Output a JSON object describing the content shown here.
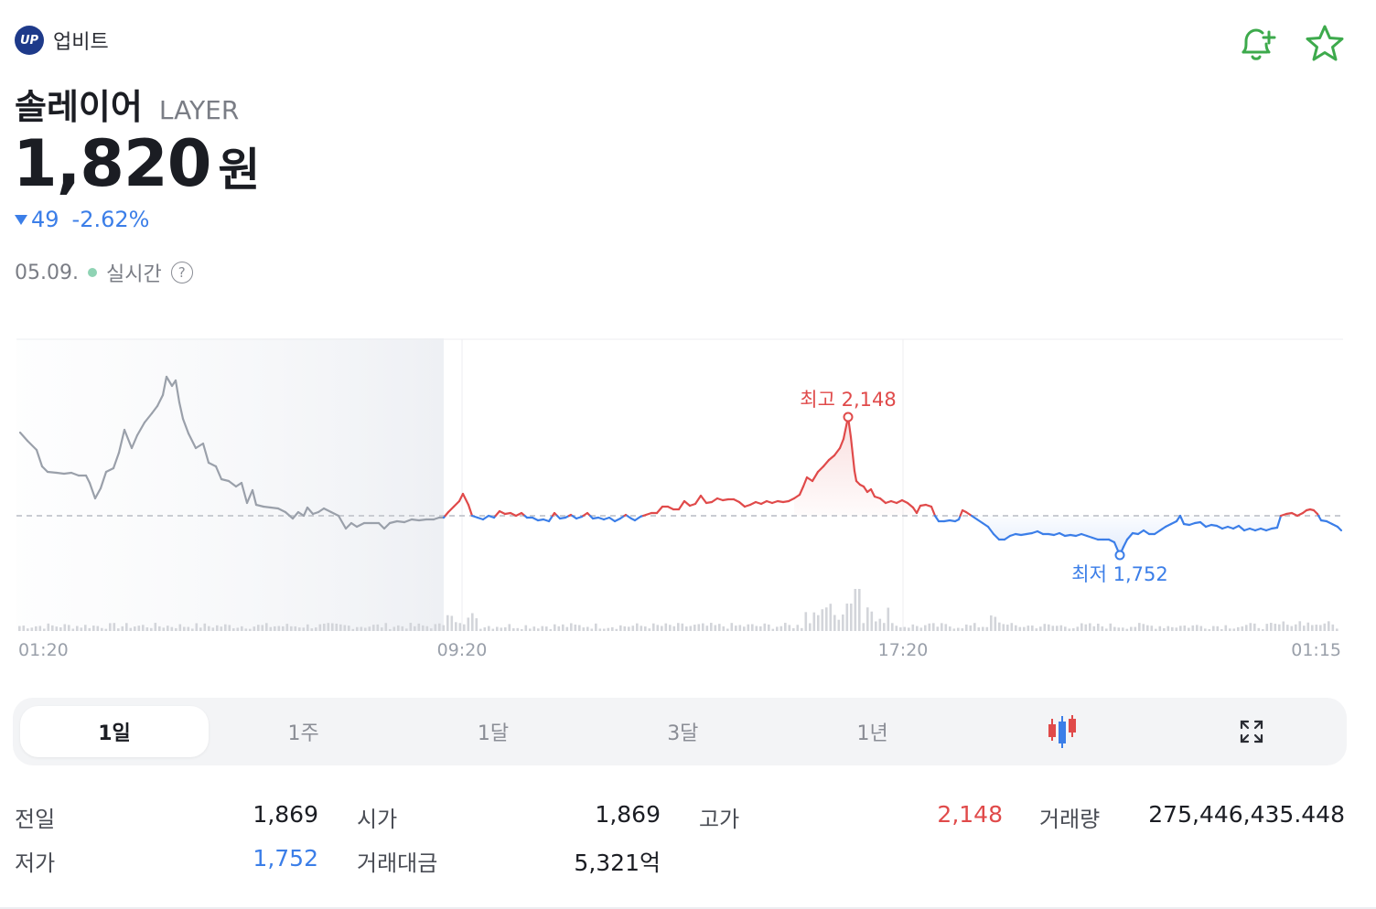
{
  "brand": {
    "name": "업비트",
    "logo_text": "UP"
  },
  "coin": {
    "name_kr": "솔레이어",
    "symbol": "LAYER"
  },
  "price": {
    "value": "1,820",
    "unit": "원"
  },
  "change": {
    "amount": "49",
    "percent": "-2.62%",
    "direction": "down"
  },
  "meta": {
    "date": "05.09.",
    "status": "실시간",
    "help": "?"
  },
  "chart_data": {
    "type": "line",
    "x_ticks": [
      "01:20",
      "09:20",
      "17:20",
      "01:15"
    ],
    "reference_price": 1869,
    "high": {
      "label": "최고 2,148",
      "value": 2148
    },
    "low": {
      "label": "최저 1,752",
      "value": 1752
    },
    "colors": {
      "up": "#e04a4a",
      "down": "#3b7ee8",
      "previous": "#9aa0aa",
      "volume": "#d3d5da"
    }
  },
  "tabs": [
    {
      "label": "1일",
      "active": true
    },
    {
      "label": "1주",
      "active": false
    },
    {
      "label": "1달",
      "active": false
    },
    {
      "label": "3달",
      "active": false
    },
    {
      "label": "1년",
      "active": false
    }
  ],
  "icons": {
    "chart_type": "candlestick-icon",
    "fullscreen": "expand-icon",
    "alarm": "bell-plus-icon",
    "favorite": "star-icon"
  },
  "stats": {
    "prev_close": {
      "label": "전일",
      "value": "1,869"
    },
    "open": {
      "label": "시가",
      "value": "1,869"
    },
    "high": {
      "label": "고가",
      "value": "2,148"
    },
    "volume": {
      "label": "거래량",
      "value": "275,446,435.448"
    },
    "low": {
      "label": "저가",
      "value": "1,752"
    },
    "turnover": {
      "label": "거래대금",
      "value": "5,321억"
    }
  }
}
